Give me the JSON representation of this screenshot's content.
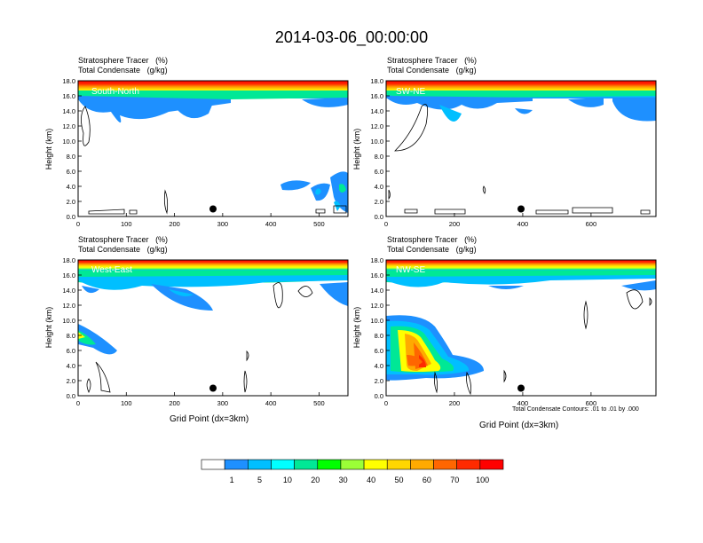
{
  "page_title": "2014-03-06_00:00:00",
  "panel_header": {
    "line1_left": "Stratosphere Tracer",
    "line1_right": "(%)",
    "line2_left": "Total Condensate",
    "line2_right": "(g/kg)"
  },
  "xaxis_label": "Grid Point (dx=3km)",
  "contour_note": "Total Condensate Contours: .01 to .01 by .000",
  "colors": {
    "scale": [
      "#ffffff",
      "#1e90ff",
      "#00bfff",
      "#00ffff",
      "#00e896",
      "#00ff00",
      "#9bff37",
      "#ffff00",
      "#ffd700",
      "#ffaa00",
      "#ff6600",
      "#ff2a00",
      "#ff0000"
    ]
  },
  "colorbar_labels": [
    "1",
    "5",
    "10",
    "20",
    "30",
    "40",
    "50",
    "60",
    "70",
    "100"
  ],
  "chart_data": [
    {
      "type": "heatmap",
      "panel_label": "South-North",
      "ylabel": "Height (km)",
      "xlabel": "",
      "xlim": [
        0,
        560
      ],
      "ylim": [
        0,
        18
      ],
      "xticks": [
        "0",
        "100",
        "200",
        "300",
        "400",
        "500"
      ],
      "yticks": [
        "0.0",
        "2.0",
        "4.0",
        "6.0",
        "8.0",
        "10.0",
        "12.0",
        "14.0",
        "16.0",
        "18.0"
      ],
      "marker_x": 280,
      "marker_y": 1.0
    },
    {
      "type": "heatmap",
      "panel_label": "SW-NE",
      "ylabel": "Height (km)",
      "xlabel": "",
      "xlim": [
        0,
        790
      ],
      "ylim": [
        0,
        18
      ],
      "xticks": [
        "0",
        "200",
        "400",
        "600"
      ],
      "yticks": [
        "0.0",
        "2.0",
        "4.0",
        "6.0",
        "8.0",
        "10.0",
        "12.0",
        "14.0",
        "16.0",
        "18.0"
      ],
      "marker_x": 395,
      "marker_y": 1.0
    },
    {
      "type": "heatmap",
      "panel_label": "West-East",
      "ylabel": "Height (km)",
      "xlabel": "Grid Point (dx=3km)",
      "xlim": [
        0,
        560
      ],
      "ylim": [
        0,
        18
      ],
      "xticks": [
        "0",
        "100",
        "200",
        "300",
        "400",
        "500"
      ],
      "yticks": [
        "0.0",
        "2.0",
        "4.0",
        "6.0",
        "8.0",
        "10.0",
        "12.0",
        "14.0",
        "16.0",
        "18.0"
      ],
      "marker_x": 280,
      "marker_y": 1.0
    },
    {
      "type": "heatmap",
      "panel_label": "NW-SE",
      "ylabel": "Height (km)",
      "xlabel": "Grid Point (dx=3km)",
      "xlim": [
        0,
        790
      ],
      "ylim": [
        0,
        18
      ],
      "xticks": [
        "0",
        "200",
        "400",
        "600"
      ],
      "yticks": [
        "0.0",
        "2.0",
        "4.0",
        "6.0",
        "8.0",
        "10.0",
        "12.0",
        "14.0",
        "16.0",
        "18.0"
      ],
      "marker_x": 395,
      "marker_y": 1.0
    }
  ]
}
